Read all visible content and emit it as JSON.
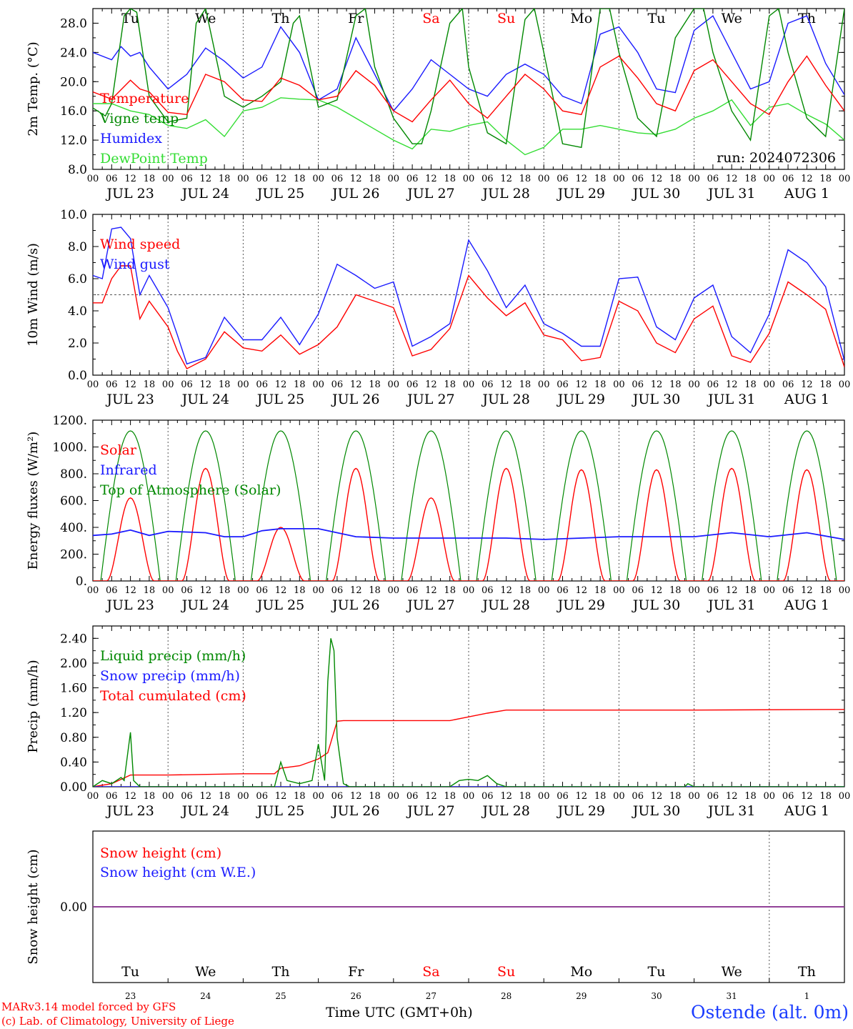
{
  "footer": {
    "model_line": "MARv3.14 model forced by GFS",
    "credit_line": "(c) Lab. of Climatology, University of Liege",
    "station": "Ostende (alt. 0m)",
    "time_label": "Time UTC (GMT+0h)"
  },
  "colors": {
    "red": "#ff0000",
    "blue": "#1a1aff",
    "green": "#008800",
    "lightgreen": "#33dd33",
    "purple": "#8040a0",
    "axis": "#000000"
  },
  "chart_data": [
    {
      "type": "line",
      "id": "temp",
      "ylabel": "2m Temp. (°C)",
      "ylim": [
        8,
        30
      ],
      "yticks": [
        8.0,
        12.0,
        16.0,
        20.0,
        24.0,
        28.0
      ],
      "ytick_labels": [
        "8.0",
        "12.0",
        "16.0",
        "20.0",
        "24.0",
        "28.0"
      ],
      "x_hour_ticks": [
        "00",
        "06",
        "12",
        "18"
      ],
      "day_labels": [
        "JUL 23",
        "JUL 24",
        "JUL 25",
        "JUL 26",
        "JUL 27",
        "JUL 28",
        "JUL 29",
        "JUL 30",
        "JUL 31",
        "AUG  1"
      ],
      "weekdays": [
        "Tu",
        "We",
        "Th",
        "Fr",
        "Sa",
        "Su",
        "Mo",
        "Tu",
        "We",
        "Th"
      ],
      "weekday_colors": [
        "#000",
        "#000",
        "#000",
        "#000",
        "#ff0000",
        "#ff0000",
        "#000",
        "#000",
        "#000",
        "#000"
      ],
      "annotation": "run: 2024072306",
      "series": [
        {
          "name": "Temperature",
          "color": "#ff0000",
          "x": [
            0,
            6,
            12,
            15,
            18,
            24,
            30,
            36,
            42,
            48,
            54,
            60,
            66,
            72,
            78,
            84,
            90,
            96,
            102,
            108,
            114,
            120,
            126,
            132,
            138,
            144,
            150,
            156,
            162,
            168,
            174,
            180,
            186,
            192,
            198,
            204,
            210,
            216,
            222,
            228,
            234,
            240
          ],
          "values": [
            18.6,
            17.6,
            20.2,
            19,
            18.6,
            15.8,
            15.5,
            21,
            20,
            17.5,
            17.3,
            20.5,
            19.5,
            17.5,
            18,
            21.5,
            19.5,
            16,
            14.5,
            17.5,
            20.2,
            17,
            15,
            18,
            21,
            19,
            16,
            15.5,
            22,
            23.5,
            20.5,
            17,
            16,
            21.5,
            23,
            20,
            17,
            15.5,
            20,
            23.5,
            19.5,
            16
          ]
        },
        {
          "name": "Vigne temp",
          "color": "#008800",
          "x": [
            0,
            4,
            6,
            10,
            12,
            14,
            18,
            24,
            30,
            33,
            36,
            40,
            42,
            48,
            54,
            60,
            64,
            66,
            72,
            78,
            84,
            87,
            90,
            96,
            102,
            105,
            108,
            114,
            118,
            120,
            126,
            132,
            138,
            141,
            144,
            150,
            156,
            162,
            165,
            168,
            174,
            180,
            186,
            192,
            195,
            198,
            204,
            210,
            216,
            219,
            222,
            228,
            234,
            240
          ],
          "values": [
            16.4,
            15.3,
            17,
            29,
            30,
            29.5,
            18,
            14.5,
            15,
            28,
            30,
            22,
            18,
            16.5,
            18,
            20,
            28,
            29,
            16.5,
            17.5,
            29,
            30,
            22,
            15,
            11.5,
            11.5,
            16,
            28,
            30,
            22,
            13,
            11.5,
            28.5,
            30,
            24,
            11.5,
            11,
            30,
            30,
            24,
            15,
            12.5,
            26,
            30,
            30,
            24,
            16,
            12,
            29,
            30,
            24,
            15,
            12.5,
            30
          ]
        },
        {
          "name": "Humidex",
          "color": "#1a1aff",
          "x": [
            0,
            6,
            9,
            12,
            15,
            18,
            24,
            30,
            36,
            42,
            48,
            54,
            60,
            66,
            72,
            78,
            84,
            90,
            96,
            102,
            108,
            114,
            120,
            126,
            132,
            138,
            144,
            150,
            156,
            162,
            168,
            174,
            180,
            186,
            192,
            198,
            204,
            210,
            216,
            222,
            228,
            234,
            240
          ],
          "values": [
            24,
            23,
            24.8,
            23.5,
            24,
            22,
            19,
            21,
            24.6,
            22.8,
            20.5,
            22,
            27.5,
            24,
            17.5,
            19,
            26,
            21,
            16,
            19,
            23,
            21,
            19,
            18,
            21,
            22.4,
            21,
            18,
            17,
            26.5,
            27.5,
            24,
            19,
            18.5,
            27,
            29,
            24,
            19,
            20,
            28,
            29,
            22.5,
            18.2
          ]
        },
        {
          "name": "DewPoint Temp",
          "color": "#33dd33",
          "x": [
            0,
            6,
            12,
            18,
            24,
            30,
            36,
            42,
            48,
            54,
            60,
            66,
            72,
            78,
            84,
            90,
            96,
            102,
            108,
            114,
            120,
            126,
            132,
            138,
            144,
            150,
            156,
            162,
            168,
            174,
            180,
            186,
            192,
            198,
            204,
            210,
            216,
            222,
            228,
            234,
            240
          ],
          "values": [
            17,
            17,
            16,
            15.5,
            14,
            13.6,
            14.8,
            12.5,
            16,
            16.5,
            17.8,
            17.6,
            17.5,
            16.5,
            15,
            13.5,
            12,
            10.8,
            13.5,
            13.2,
            14,
            14.5,
            12,
            10,
            11,
            13.5,
            13.5,
            14,
            13.5,
            13,
            12.8,
            13.5,
            15,
            16,
            17.5,
            14,
            16.5,
            17,
            15.5,
            14.2,
            12
          ]
        }
      ],
      "legend_position": "upper-left"
    },
    {
      "type": "line",
      "id": "wind",
      "ylabel": "10m Wind (m/s)",
      "ylim": [
        0,
        10
      ],
      "yticks": [
        0,
        2,
        4,
        6,
        8,
        10
      ],
      "ytick_labels": [
        "0.0",
        "2.0",
        "4.0",
        "6.0",
        "8.0",
        "10.0"
      ],
      "reference_line": 5,
      "x_hour_ticks": [
        "00",
        "06",
        "12",
        "18"
      ],
      "day_labels": [
        "JUL 23",
        "JUL 24",
        "JUL 25",
        "JUL 26",
        "JUL 27",
        "JUL 28",
        "JUL 29",
        "JUL 30",
        "JUL 31",
        "AUG  1"
      ],
      "series": [
        {
          "name": "Wind speed",
          "color": "#ff0000",
          "x": [
            0,
            3,
            6,
            9,
            12,
            15,
            18,
            24,
            27,
            30,
            36,
            42,
            48,
            54,
            60,
            66,
            72,
            78,
            84,
            90,
            96,
            102,
            108,
            114,
            120,
            126,
            132,
            138,
            144,
            150,
            156,
            162,
            168,
            174,
            180,
            186,
            192,
            198,
            204,
            210,
            216,
            222,
            228,
            234,
            240
          ],
          "values": [
            4.5,
            4.5,
            6,
            6.8,
            6.8,
            3.5,
            4.6,
            3,
            1.5,
            0.4,
            1,
            2.7,
            1.7,
            1.5,
            2.5,
            1.3,
            1.9,
            3,
            5,
            4.6,
            4.2,
            1.2,
            1.6,
            2.9,
            6.2,
            4.8,
            3.7,
            4.5,
            2.5,
            2.2,
            0.9,
            1.1,
            4.6,
            4,
            2,
            1.4,
            3.5,
            4.3,
            1.2,
            0.8,
            2.6,
            5.8,
            5,
            4.1,
            0.5
          ]
        },
        {
          "name": "Wind gust",
          "color": "#1a1aff",
          "x": [
            0,
            3,
            6,
            9,
            12,
            15,
            18,
            24,
            27,
            30,
            36,
            42,
            48,
            54,
            60,
            66,
            72,
            78,
            84,
            90,
            96,
            102,
            108,
            114,
            120,
            126,
            132,
            138,
            144,
            150,
            156,
            162,
            168,
            174,
            180,
            186,
            192,
            198,
            204,
            210,
            216,
            222,
            228,
            234,
            240
          ],
          "values": [
            6.2,
            6,
            9.1,
            9.2,
            8.5,
            5,
            6.2,
            4.2,
            2.5,
            0.7,
            1.1,
            3.6,
            2.2,
            2.2,
            3.6,
            1.9,
            3.8,
            6.9,
            6.2,
            5.4,
            5.8,
            1.8,
            2.4,
            3.2,
            8.4,
            6.5,
            4.2,
            5.6,
            3.2,
            2.6,
            1.8,
            1.8,
            6,
            6.1,
            3,
            2.2,
            4.8,
            5.6,
            2.4,
            1.4,
            3.8,
            7.8,
            7,
            5.5,
            0.9
          ]
        }
      ],
      "legend_position": "upper-left"
    },
    {
      "type": "line",
      "id": "energy",
      "ylabel": "Energy fluxes (W/m²)",
      "ylim": [
        0,
        1200
      ],
      "yticks": [
        0,
        200,
        400,
        600,
        800,
        1000,
        1200
      ],
      "ytick_labels": [
        "0.",
        "200.",
        "400.",
        "600.",
        "800.",
        "1000.",
        "1200."
      ],
      "x_hour_ticks": [
        "00",
        "06",
        "12",
        "18"
      ],
      "day_labels": [
        "JUL 23",
        "JUL 24",
        "JUL 25",
        "JUL 26",
        "JUL 27",
        "JUL 28",
        "JUL 29",
        "JUL 30",
        "JUL 31",
        "AUG  1"
      ],
      "toa_peak": 1120,
      "solar_daily_peaks": [
        620,
        840,
        400,
        840,
        620,
        840,
        830,
        830,
        840,
        830
      ],
      "series": [
        {
          "name": "Solar",
          "color": "#ff0000"
        },
        {
          "name": "Infrared",
          "color": "#1a1aff",
          "x": [
            0,
            6,
            12,
            18,
            24,
            36,
            42,
            48,
            54,
            60,
            66,
            72,
            84,
            96,
            108,
            120,
            132,
            144,
            156,
            168,
            180,
            192,
            204,
            216,
            228,
            240
          ],
          "values": [
            340,
            350,
            380,
            340,
            370,
            360,
            330,
            330,
            375,
            390,
            390,
            390,
            330,
            320,
            320,
            320,
            320,
            310,
            320,
            330,
            330,
            330,
            360,
            330,
            360,
            310
          ]
        },
        {
          "name": "Top of Atmosphere (Solar)",
          "color": "#008800"
        }
      ],
      "legend_position": "upper-left"
    },
    {
      "type": "line",
      "id": "precip",
      "ylabel": "Precip (mm/h)",
      "ylim": [
        0,
        2.6
      ],
      "yticks": [
        0,
        0.4,
        0.8,
        1.2,
        1.6,
        2.0,
        2.4
      ],
      "ytick_labels": [
        "0.00",
        "0.40",
        "0.80",
        "1.20",
        "1.60",
        "2.00",
        "2.40"
      ],
      "x_hour_ticks": [
        "00",
        "06",
        "12",
        "18"
      ],
      "day_labels": [
        "JUL 23",
        "JUL 24",
        "JUL 25",
        "JUL 26",
        "JUL 27",
        "JUL 28",
        "JUL 29",
        "JUL 30",
        "JUL 31",
        "AUG  1"
      ],
      "series": [
        {
          "name": "Liquid precip (mm/h)",
          "color": "#008800",
          "x": [
            0,
            3,
            6,
            9,
            10,
            12,
            13,
            15,
            24,
            48,
            58,
            60,
            62,
            66,
            70,
            72,
            74,
            75,
            76,
            77,
            78,
            80,
            82,
            96,
            114,
            117,
            120,
            123,
            126,
            129,
            132,
            189,
            190,
            192,
            240
          ],
          "values": [
            0,
            0.1,
            0.05,
            0.15,
            0.1,
            0.88,
            0.1,
            0,
            0,
            0,
            0,
            0.4,
            0.1,
            0.05,
            0.1,
            0.69,
            0.1,
            1.7,
            2.4,
            2.2,
            0.8,
            0.05,
            0,
            0,
            0,
            0.1,
            0.12,
            0.1,
            0.18,
            0.05,
            0,
            0,
            0.05,
            0,
            0
          ]
        },
        {
          "name": "Snow precip (mm/h)",
          "color": "#1a1aff",
          "x": [
            0,
            240
          ],
          "values": [
            0,
            0
          ]
        },
        {
          "name": "Total cumulated (cm)",
          "color": "#ff0000",
          "x": [
            0,
            6,
            12,
            24,
            48,
            58,
            60,
            66,
            72,
            75,
            78,
            80,
            96,
            108,
            114,
            120,
            126,
            132,
            192,
            240
          ],
          "values": [
            0,
            0.05,
            0.19,
            0.19,
            0.21,
            0.21,
            0.3,
            0.34,
            0.45,
            0.55,
            1.06,
            1.07,
            1.07,
            1.07,
            1.07,
            1.13,
            1.19,
            1.24,
            1.24,
            1.25
          ]
        }
      ],
      "legend_position": "upper-left"
    },
    {
      "type": "line",
      "id": "snow",
      "ylabel": "Snow height (cm)",
      "ylim": [
        -1,
        1
      ],
      "yticks": [
        0
      ],
      "ytick_labels": [
        "0.00"
      ],
      "weekdays": [
        "Tu",
        "We",
        "Th",
        "Fr",
        "Sa",
        "Su",
        "Mo",
        "Tu",
        "We",
        "Th"
      ],
      "weekday_colors": [
        "#000",
        "#000",
        "#000",
        "#000",
        "#ff0000",
        "#ff0000",
        "#000",
        "#000",
        "#000",
        "#000"
      ],
      "day_numbers": [
        "23",
        "24",
        "25",
        "26",
        "27",
        "28",
        "29",
        "30",
        "31",
        "1"
      ],
      "series": [
        {
          "name": "Snow height (cm)",
          "color": "#ff0000",
          "x": [
            0,
            240
          ],
          "values": [
            0,
            0
          ]
        },
        {
          "name": "Snow height (cm W.E.)",
          "color": "#1a1aff",
          "x": [
            0,
            240
          ],
          "values": [
            0,
            0
          ]
        }
      ],
      "legend_position": "upper-left"
    }
  ]
}
